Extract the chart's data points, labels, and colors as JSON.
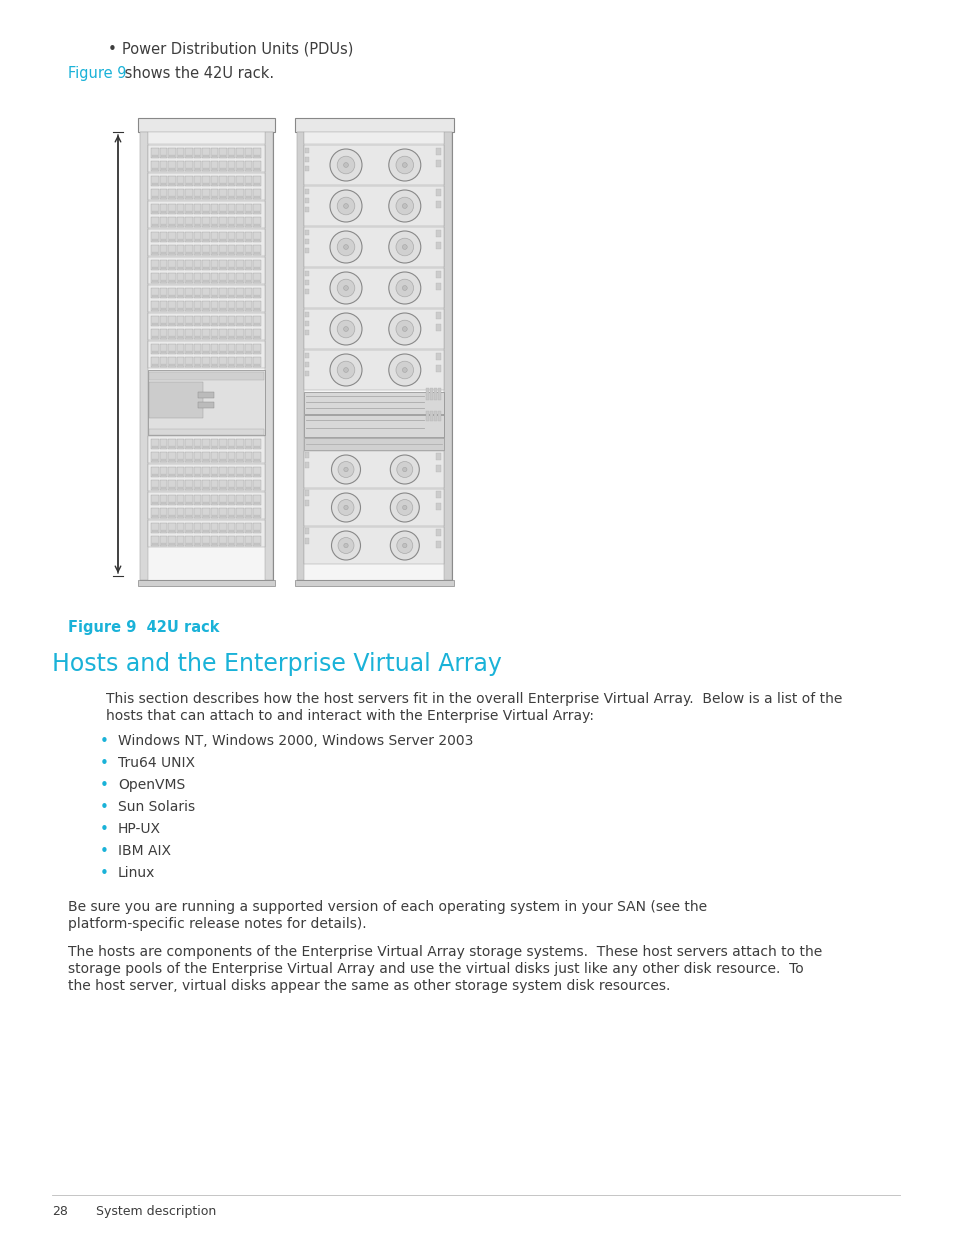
{
  "bg_color": "#ffffff",
  "cyan_color": "#1ab2d8",
  "text_color": "#3d3d3d",
  "bullet_color": "#1ab2d8",
  "top_bullet": "Power Distribution Units (PDUs)",
  "figure_ref": "Figure 9",
  "figure_ref_suffix": " shows the 42U rack.",
  "figure_caption": "Figure 9  42U rack",
  "section_title": "Hosts and the Enterprise Virtual Array",
  "intro_text": "This section describes how the host servers fit in the overall Enterprise Virtual Array.  Below is a list of the\nhosts that can attach to and interact with the Enterprise Virtual Array:",
  "bullet_items": [
    "Windows NT, Windows 2000, Windows Server 2003",
    "Tru64 UNIX",
    "OpenVMS",
    "Sun Solaris",
    "HP-UX",
    "IBM AIX",
    "Linux"
  ],
  "para1": "Be sure you are running a supported version of each operating system in your SAN (see the\nplatform-specific release notes for details).",
  "para2": "The hosts are components of the Enterprise Virtual Array storage systems.  These host servers attach to the\nstorage pools of the Enterprise Virtual Array and use the virtual disks just like any other disk resource.  To\nthe host server, virtual disks appear the same as other storage system disk resources.",
  "footer_page": "28",
  "footer_text": "System description"
}
